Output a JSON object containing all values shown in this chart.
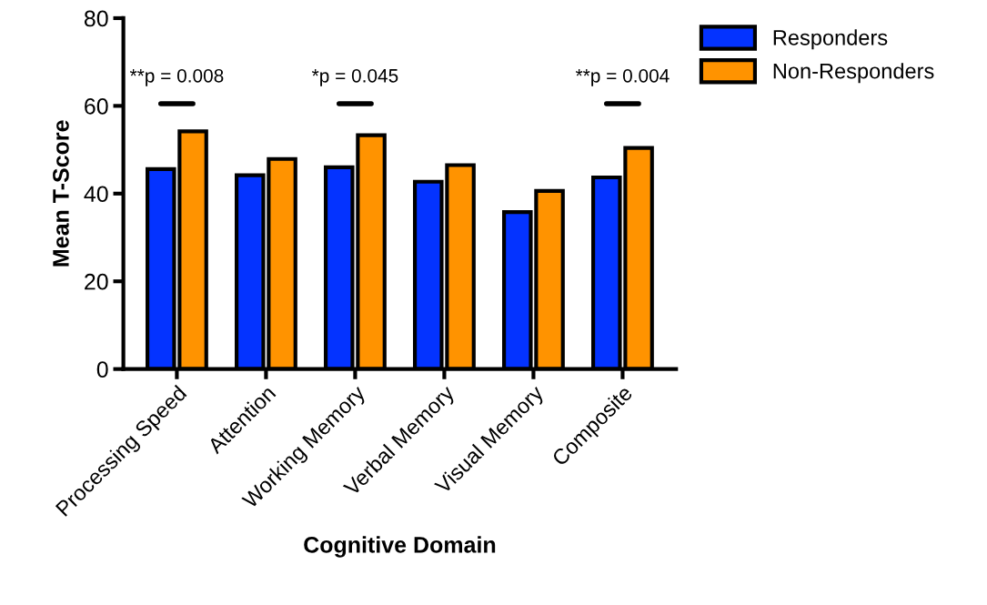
{
  "chart_data": {
    "type": "bar",
    "xlabel": "Cognitive Domain",
    "ylabel": "Mean T-Score",
    "categories": [
      "Processing Speed",
      "Attention",
      "Working Memory",
      "Verbal Memory",
      "Visual Memory",
      "Composite"
    ],
    "series": [
      {
        "name": "Responders",
        "color": "#0433ff",
        "values": [
          45.6,
          44.2,
          46.0,
          42.7,
          35.8,
          43.7
        ]
      },
      {
        "name": "Non-Responders",
        "color": "#ff9300",
        "values": [
          54.2,
          47.9,
          53.3,
          46.5,
          40.6,
          50.4
        ]
      }
    ],
    "ylim": [
      0,
      80
    ],
    "yticks": [
      0,
      20,
      40,
      60,
      80
    ],
    "grid": false,
    "legend": "top right",
    "annotations": [
      "**p = 0.008",
      "*p = 0.045",
      "**p = 0.004"
    ]
  }
}
